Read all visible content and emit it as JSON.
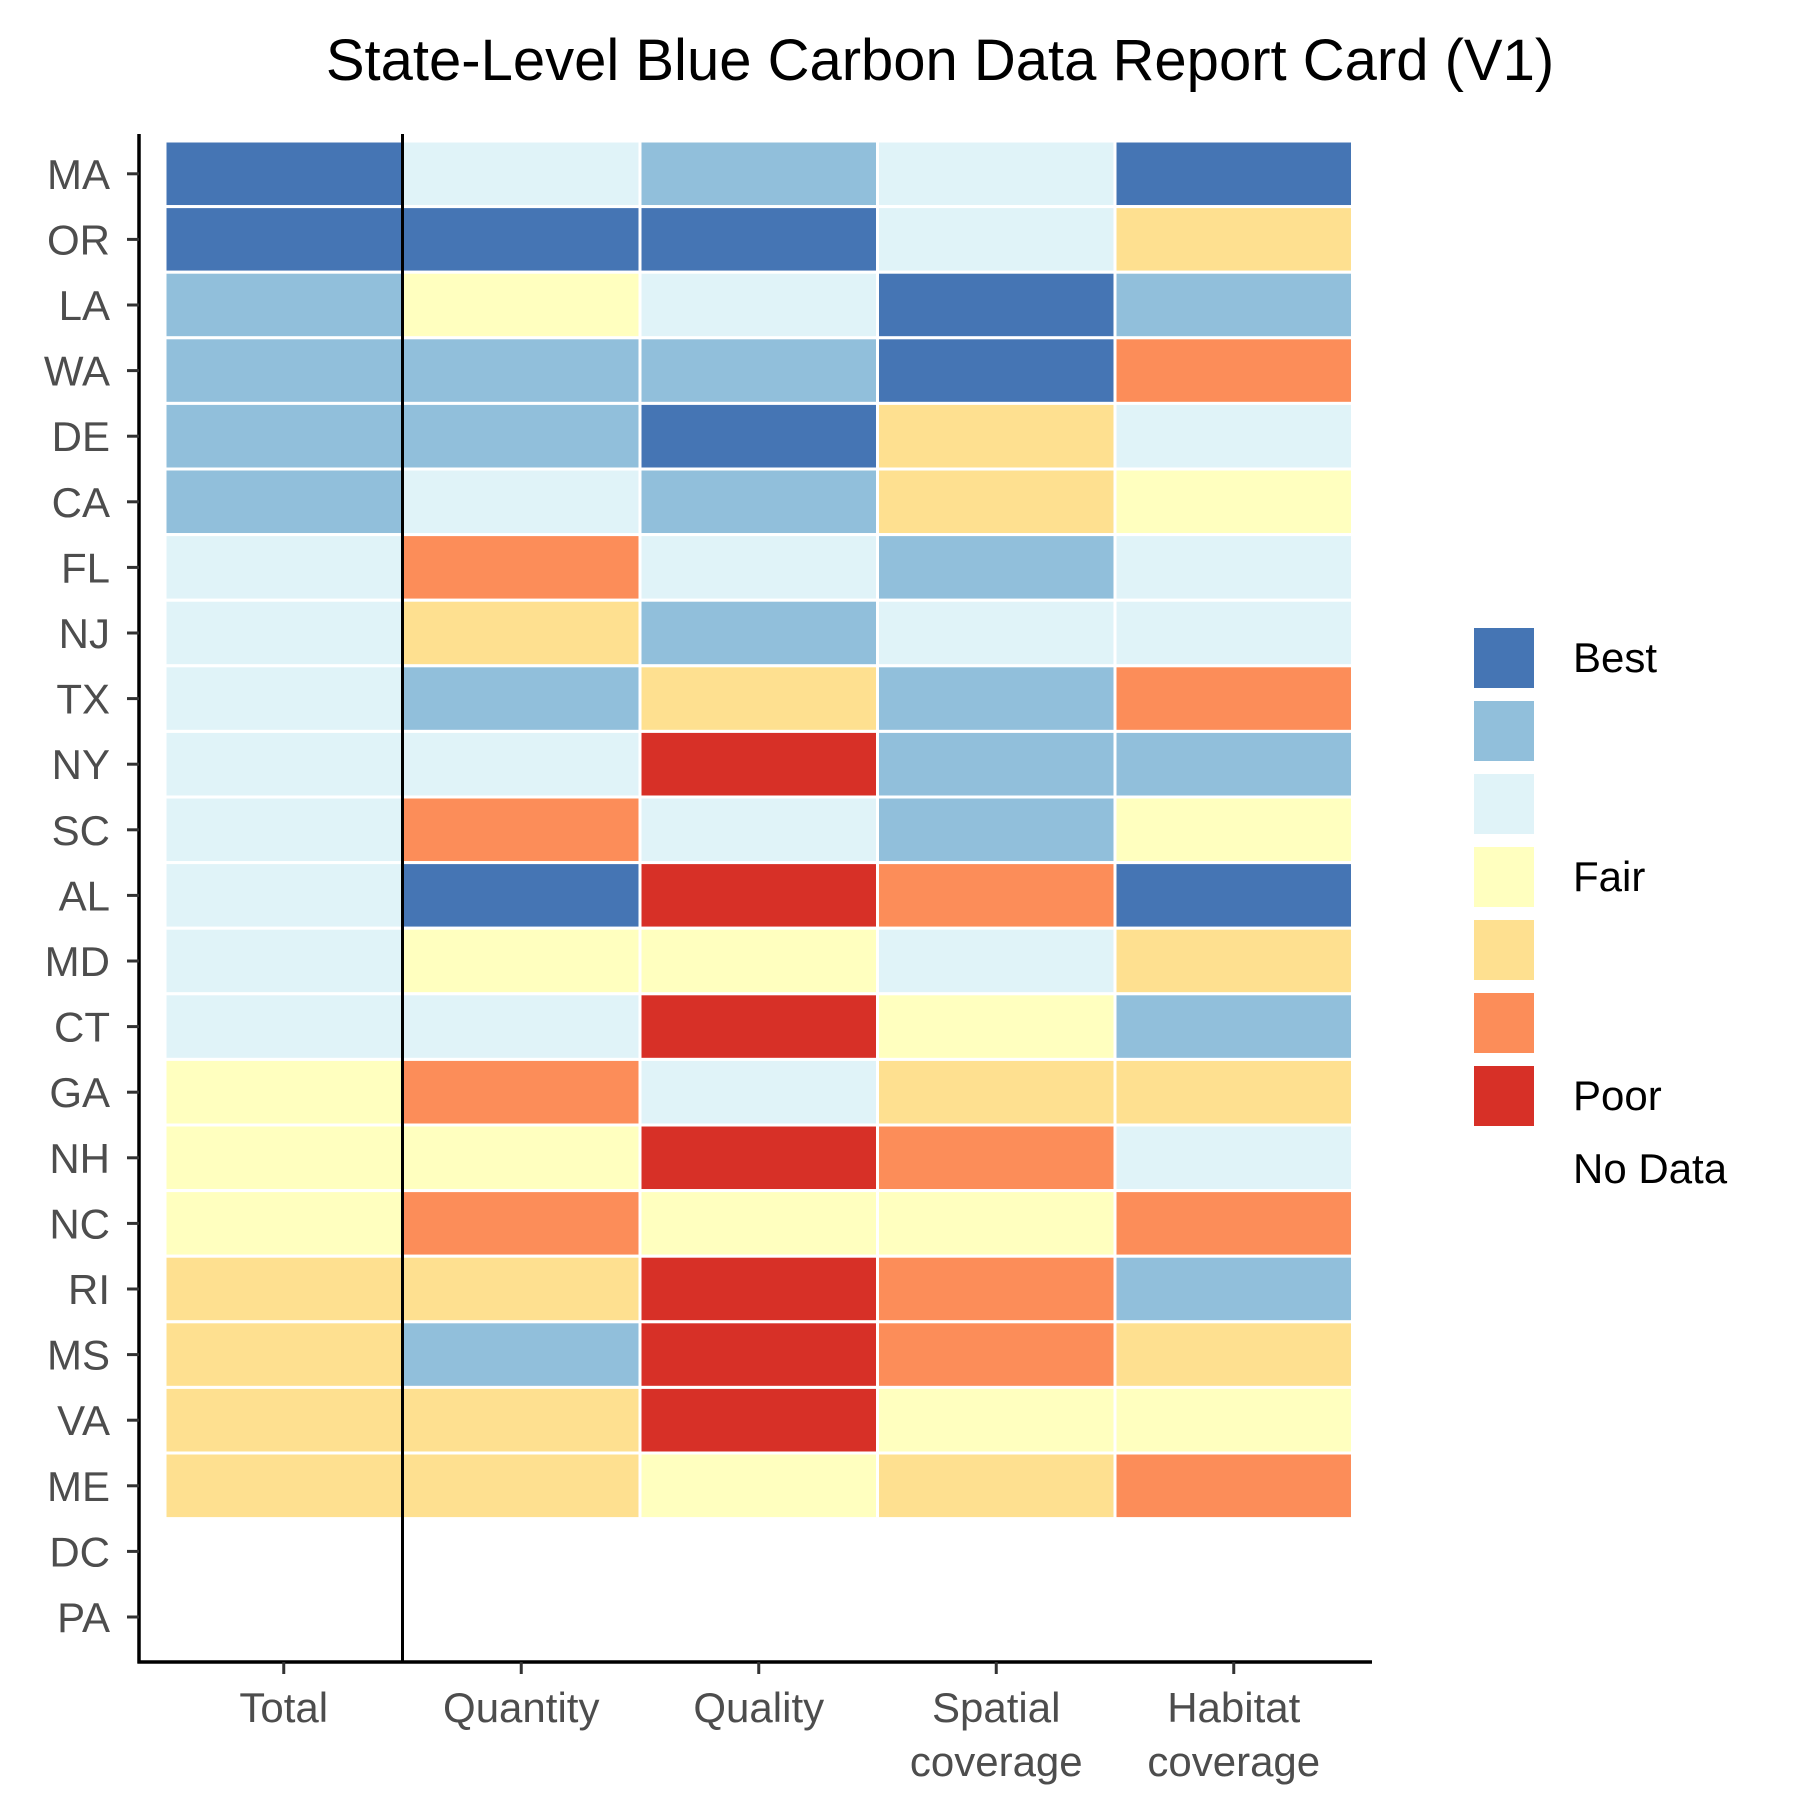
{
  "chart_data": {
    "type": "heatmap",
    "title": "State-Level Blue Carbon Data Report Card (V1)",
    "xlabel": "",
    "ylabel": "",
    "columns": [
      [
        "Total"
      ],
      [
        "Quantity"
      ],
      [
        "Quality"
      ],
      [
        "Spatial",
        "coverage"
      ],
      [
        "Habitat",
        "coverage"
      ]
    ],
    "rows": [
      "MA",
      "OR",
      "LA",
      "WA",
      "DE",
      "CA",
      "FL",
      "NJ",
      "TX",
      "NY",
      "SC",
      "AL",
      "MD",
      "CT",
      "GA",
      "NH",
      "NC",
      "RI",
      "MS",
      "VA",
      "ME",
      "DC",
      "PA"
    ],
    "scale": {
      "levels": [
        7,
        6,
        5,
        4,
        3,
        2,
        1
      ],
      "colors": {
        "7": "#4575b4",
        "6": "#91bfdb",
        "5": "#e0f3f8",
        "4": "#ffffbf",
        "3": "#fee090",
        "2": "#fc8d59",
        "1": "#d73027"
      },
      "no_data": "#ffffff"
    },
    "values": [
      [
        7,
        5,
        6,
        5,
        7
      ],
      [
        7,
        7,
        7,
        5,
        3
      ],
      [
        6,
        4,
        5,
        7,
        6
      ],
      [
        6,
        6,
        6,
        7,
        2
      ],
      [
        6,
        6,
        7,
        3,
        5
      ],
      [
        6,
        5,
        6,
        3,
        4
      ],
      [
        5,
        2,
        5,
        6,
        5
      ],
      [
        5,
        3,
        6,
        5,
        5
      ],
      [
        5,
        6,
        3,
        6,
        2
      ],
      [
        5,
        5,
        1,
        6,
        6
      ],
      [
        5,
        2,
        5,
        6,
        4
      ],
      [
        5,
        7,
        1,
        2,
        7
      ],
      [
        5,
        4,
        4,
        5,
        3
      ],
      [
        5,
        5,
        1,
        4,
        6
      ],
      [
        4,
        2,
        5,
        3,
        3
      ],
      [
        4,
        4,
        1,
        2,
        5
      ],
      [
        4,
        2,
        4,
        4,
        2
      ],
      [
        3,
        3,
        1,
        2,
        6
      ],
      [
        3,
        6,
        1,
        2,
        3
      ],
      [
        3,
        3,
        1,
        4,
        4
      ],
      [
        3,
        3,
        4,
        3,
        2
      ],
      [
        null,
        null,
        null,
        null,
        null
      ],
      [
        null,
        null,
        null,
        null,
        null
      ]
    ],
    "legend": {
      "position": "right",
      "entries": [
        {
          "level": 7,
          "label": "Best"
        },
        {
          "level": 6,
          "label": ""
        },
        {
          "level": 5,
          "label": ""
        },
        {
          "level": 4,
          "label": "Fair"
        },
        {
          "level": 3,
          "label": ""
        },
        {
          "level": 2,
          "label": ""
        },
        {
          "level": 1,
          "label": "Poor"
        },
        {
          "level": null,
          "label": "No Data"
        }
      ]
    },
    "separator_after_column": "Total",
    "grid": false
  }
}
